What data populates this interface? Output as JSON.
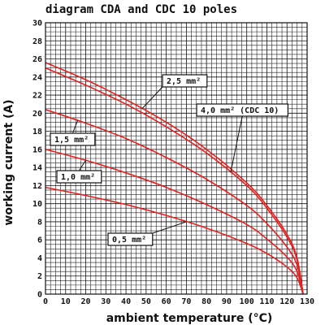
{
  "chart_data": {
    "type": "line",
    "title": "diagram CDA and CDC 10 poles",
    "xlabel": "ambient temperature (°C)",
    "ylabel": "working current (A)",
    "xlim": [
      0,
      130
    ],
    "ylim": [
      0,
      30
    ],
    "x_ticks": [
      0,
      10,
      20,
      30,
      40,
      50,
      60,
      70,
      80,
      90,
      100,
      110,
      120,
      130
    ],
    "y_ticks": [
      0,
      2,
      4,
      6,
      8,
      10,
      12,
      14,
      16,
      18,
      20,
      22,
      24,
      26,
      28,
      30
    ],
    "grid": true,
    "series": [
      {
        "name": "2,5 mm²",
        "x": [
          0,
          20,
          40,
          60,
          80,
          100,
          110,
          120,
          125,
          128
        ],
        "y": [
          25.6,
          23.7,
          21.5,
          19.0,
          16.0,
          12.3,
          9.8,
          6.6,
          4.0,
          0.0
        ]
      },
      {
        "name": "4,0 mm² (CDC 10)",
        "x": [
          0,
          20,
          40,
          60,
          80,
          100,
          110,
          120,
          125,
          128
        ],
        "y": [
          25.0,
          23.1,
          21.0,
          18.5,
          15.6,
          12.0,
          9.5,
          6.3,
          3.8,
          0.0
        ]
      },
      {
        "name": "1,5 mm²",
        "x": [
          0,
          20,
          40,
          60,
          80,
          100,
          110,
          120,
          125,
          128
        ],
        "y": [
          20.4,
          18.9,
          17.2,
          15.1,
          12.7,
          9.8,
          7.8,
          5.2,
          3.2,
          0.0
        ]
      },
      {
        "name": "1,0 mm²",
        "x": [
          0,
          20,
          40,
          60,
          80,
          100,
          110,
          120,
          125,
          128
        ],
        "y": [
          16.0,
          14.8,
          13.4,
          11.8,
          9.9,
          7.7,
          6.1,
          4.1,
          2.5,
          0.0
        ]
      },
      {
        "name": "0,5 mm²",
        "x": [
          0,
          20,
          40,
          60,
          80,
          100,
          110,
          120,
          125,
          128
        ],
        "y": [
          11.8,
          10.9,
          9.9,
          8.7,
          7.3,
          5.6,
          4.5,
          3.0,
          1.8,
          0.0
        ]
      }
    ],
    "annotations": [
      {
        "text": "2,5 mm²",
        "series": 0,
        "at_x": 48
      },
      {
        "text": "4,0 mm² (CDC 10)",
        "series": 1,
        "at_x": 92
      },
      {
        "text": "1,5 mm²",
        "series": 2,
        "at_x": 16
      },
      {
        "text": "1,0 mm²",
        "series": 3,
        "at_x": 20
      },
      {
        "text": "0,5 mm²",
        "series": 4,
        "at_x": 70
      }
    ],
    "line_color": "#e32222"
  }
}
